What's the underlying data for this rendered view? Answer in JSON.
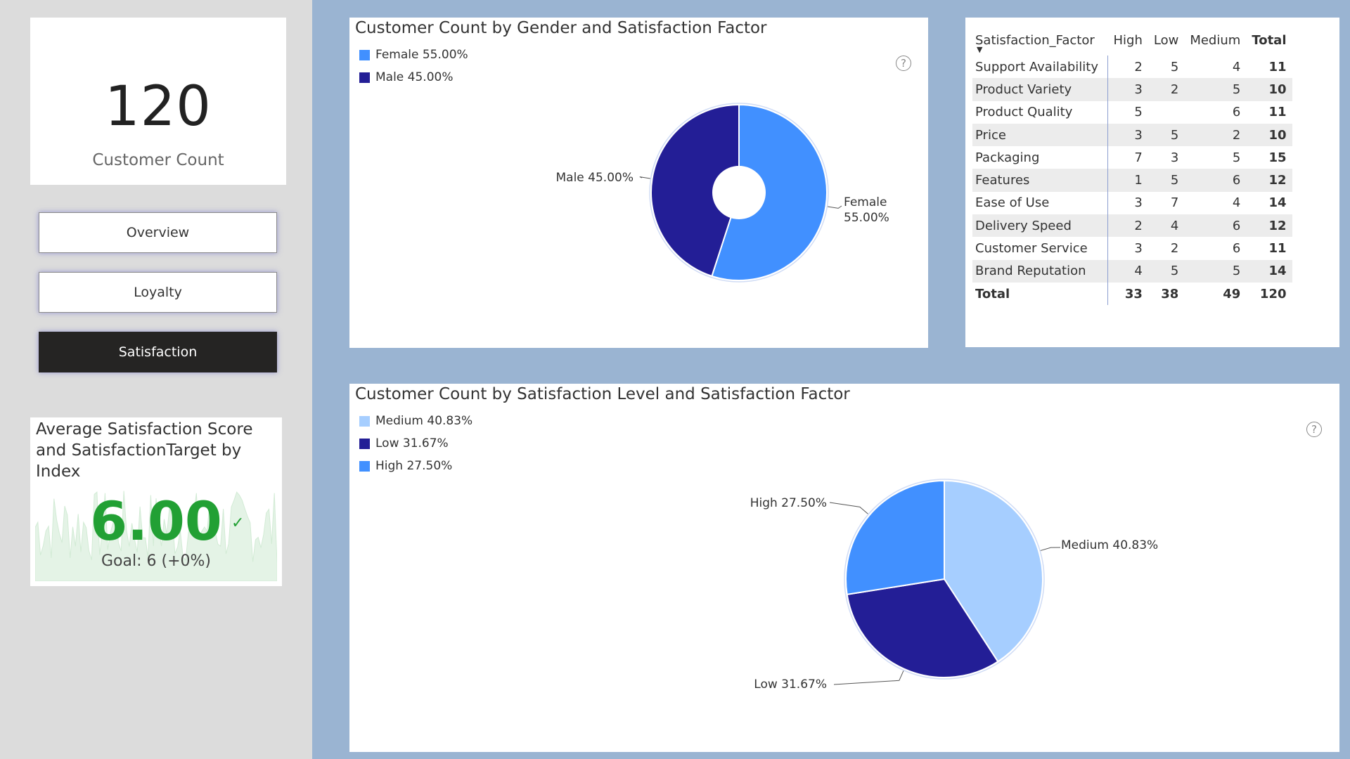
{
  "kpi": {
    "value": "120",
    "label": "Customer Count"
  },
  "nav": [
    {
      "label": "Overview",
      "active": false
    },
    {
      "label": "Loyalty",
      "active": false
    },
    {
      "label": "Satisfaction",
      "active": true
    }
  ],
  "gauge": {
    "title": "Average Satisfaction Score and SatisfactionTarget by Index",
    "value": "6.00",
    "check_icon": "check-icon",
    "goal": "Goal: 6 (+0%)",
    "color": "#22a034"
  },
  "matrix": {
    "headers": [
      "Satisfaction_Factor",
      "High",
      "Low",
      "Medium",
      "Total"
    ],
    "rows": [
      [
        "Support Availability",
        "2",
        "5",
        "4",
        "11"
      ],
      [
        "Product Variety",
        "3",
        "2",
        "5",
        "10"
      ],
      [
        "Product Quality",
        "5",
        "",
        "6",
        "11"
      ],
      [
        "Price",
        "3",
        "5",
        "2",
        "10"
      ],
      [
        "Packaging",
        "7",
        "3",
        "5",
        "15"
      ],
      [
        "Features",
        "1",
        "5",
        "6",
        "12"
      ],
      [
        "Ease of Use",
        "3",
        "7",
        "4",
        "14"
      ],
      [
        "Delivery Speed",
        "2",
        "4",
        "6",
        "12"
      ],
      [
        "Customer Service",
        "3",
        "2",
        "6",
        "11"
      ],
      [
        "Brand Reputation",
        "4",
        "5",
        "5",
        "14"
      ]
    ],
    "total": [
      "Total",
      "33",
      "38",
      "49",
      "120"
    ]
  },
  "chart_data": [
    {
      "type": "pie",
      "donut": true,
      "title": "Customer Count by Gender and Satisfaction Factor",
      "categories": [
        "Female",
        "Male"
      ],
      "values": [
        55.0,
        45.0
      ],
      "unit": "%",
      "colors": [
        "#4190ff",
        "#231e96"
      ],
      "legend": [
        "Female 55.00%",
        "Male 45.00%"
      ],
      "labels": [
        "Female 55.00%",
        "Male 45.00%"
      ],
      "legend_position": "top-left",
      "help_icon": "question-icon"
    },
    {
      "type": "pie",
      "donut": false,
      "title": "Customer Count by Satisfaction Level and Satisfaction Factor",
      "categories": [
        "Medium",
        "Low",
        "High"
      ],
      "values": [
        40.83,
        31.67,
        27.5
      ],
      "unit": "%",
      "colors": [
        "#a6ceff",
        "#231e96",
        "#4190ff"
      ],
      "legend": [
        "Medium 40.83%",
        "Low 31.67%",
        "High 27.50%"
      ],
      "labels": [
        "Medium 40.83%",
        "Low 31.67%",
        "High 27.50%"
      ],
      "legend_position": "top-left",
      "help_icon": "question-icon"
    }
  ]
}
